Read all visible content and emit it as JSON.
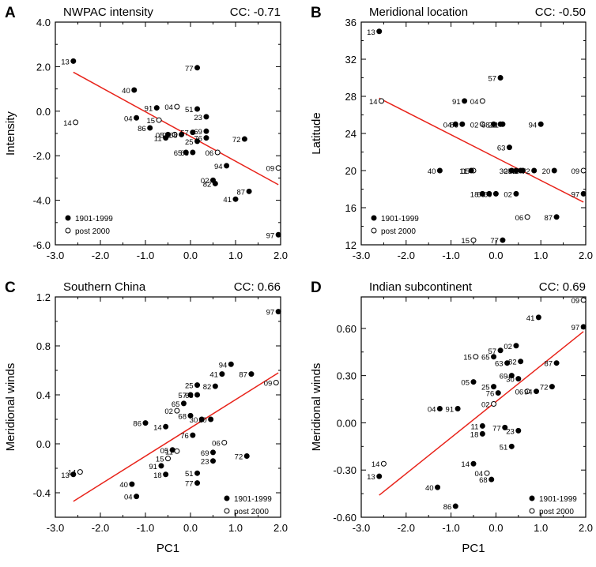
{
  "figure": {
    "xlabel": "PC1",
    "legend": {
      "filled": "1901-1999",
      "open": "post 2000"
    }
  },
  "chart_data": [
    {
      "type": "scatter",
      "panel_label": "A",
      "title": "NWPAC intensity",
      "cc_label": "CC: -0.71",
      "xlabel": "",
      "ylabel": "Intensity",
      "xlim": [
        -3.0,
        2.0
      ],
      "ylim": [
        -6.0,
        4.0
      ],
      "xticks": [
        "-3.0",
        "-2.0",
        "-1.0",
        "0.0",
        "1.0",
        "2.0"
      ],
      "yticks": [
        "-6.0",
        "-4.0",
        "-2.0",
        "0.0",
        "2.0",
        "4.0"
      ],
      "ytick_values": [
        -6,
        -4,
        -2,
        0,
        2,
        4
      ],
      "fit_line": [
        [
          -2.6,
          1.75
        ],
        [
          1.95,
          -3.3
        ]
      ],
      "legend_position": "bottom-left",
      "points": [
        {
          "label": "13",
          "x": -2.6,
          "y": 2.25,
          "open": false
        },
        {
          "label": "14",
          "x": -2.55,
          "y": -0.5,
          "open": true
        },
        {
          "label": "40",
          "x": -1.25,
          "y": 0.95,
          "open": false
        },
        {
          "label": "04",
          "x": -1.2,
          "y": -0.3,
          "open": false
        },
        {
          "label": "86",
          "x": -0.9,
          "y": -0.75,
          "open": false
        },
        {
          "label": "91",
          "x": -0.75,
          "y": 0.15,
          "open": false
        },
        {
          "label": "15",
          "x": -0.7,
          "y": -0.4,
          "open": true
        },
        {
          "label": "04",
          "x": -0.3,
          "y": 0.2,
          "open": true
        },
        {
          "label": "11",
          "x": -0.55,
          "y": -1.2,
          "open": false
        },
        {
          "label": "05",
          "x": -0.5,
          "y": -1.05,
          "open": false
        },
        {
          "label": "02",
          "x": -0.35,
          "y": -1.05,
          "open": true
        },
        {
          "label": "68",
          "x": -0.2,
          "y": -1.05,
          "open": false
        },
        {
          "label": "77",
          "x": 0.15,
          "y": 1.95,
          "open": false
        },
        {
          "label": "51",
          "x": 0.15,
          "y": 0.1,
          "open": false
        },
        {
          "label": "23",
          "x": 0.35,
          "y": -0.25,
          "open": false
        },
        {
          "label": "57",
          "x": 0.05,
          "y": -0.95,
          "open": false
        },
        {
          "label": "69",
          "x": 0.35,
          "y": -0.9,
          "open": false
        },
        {
          "label": "25",
          "x": 0.15,
          "y": -1.35,
          "open": false
        },
        {
          "label": "76",
          "x": 0.35,
          "y": -1.2,
          "open": false
        },
        {
          "label": "65",
          "x": -0.1,
          "y": -1.85,
          "open": false
        },
        {
          "label": "63",
          "x": 0.05,
          "y": -1.85,
          "open": false
        },
        {
          "label": "72",
          "x": 1.2,
          "y": -1.25,
          "open": false
        },
        {
          "label": "06",
          "x": 0.6,
          "y": -1.85,
          "open": true
        },
        {
          "label": "94",
          "x": 0.8,
          "y": -2.45,
          "open": false
        },
        {
          "label": "02",
          "x": 0.5,
          "y": -3.1,
          "open": false
        },
        {
          "label": "82",
          "x": 0.55,
          "y": -3.25,
          "open": false
        },
        {
          "label": "87",
          "x": 1.3,
          "y": -3.6,
          "open": false
        },
        {
          "label": "41",
          "x": 1.0,
          "y": -3.95,
          "open": false
        },
        {
          "label": "09",
          "x": 1.95,
          "y": -2.55,
          "open": true
        },
        {
          "label": "97",
          "x": 1.95,
          "y": -5.55,
          "open": false
        }
      ]
    },
    {
      "type": "scatter",
      "panel_label": "B",
      "title": "Meridional location",
      "cc_label": "CC: -0.50",
      "xlabel": "",
      "ylabel": "Latitude",
      "xlim": [
        -3.0,
        2.0
      ],
      "ylim": [
        12,
        36
      ],
      "xticks": [
        "-3.0",
        "-2.0",
        "-1.0",
        "0.0",
        "1.0",
        "2.0"
      ],
      "yticks": [
        "12",
        "16",
        "20",
        "24",
        "28",
        "32",
        "36"
      ],
      "ytick_values": [
        12,
        16,
        20,
        24,
        28,
        32,
        36
      ],
      "fit_line": [
        [
          -2.6,
          27.8
        ],
        [
          1.95,
          16.6
        ]
      ],
      "legend_position": "bottom-left",
      "points": [
        {
          "label": "13",
          "x": -2.6,
          "y": 35.0,
          "open": false
        },
        {
          "label": "14",
          "x": -2.55,
          "y": 27.5,
          "open": true
        },
        {
          "label": "57",
          "x": 0.1,
          "y": 30.0,
          "open": false
        },
        {
          "label": "91",
          "x": -0.7,
          "y": 27.5,
          "open": false
        },
        {
          "label": "04",
          "x": -0.3,
          "y": 27.5,
          "open": true
        },
        {
          "label": "04",
          "x": -0.9,
          "y": 25.0,
          "open": false
        },
        {
          "label": "86",
          "x": -0.75,
          "y": 25.0,
          "open": false
        },
        {
          "label": "02",
          "x": -0.3,
          "y": 25.0,
          "open": true
        },
        {
          "label": "68",
          "x": -0.05,
          "y": 25.0,
          "open": false
        },
        {
          "label": "23",
          "x": 0.1,
          "y": 25.0,
          "open": false
        },
        {
          "label": "51",
          "x": 0.15,
          "y": 25.0,
          "open": false
        },
        {
          "label": "94",
          "x": 1.0,
          "y": 25.0,
          "open": false
        },
        {
          "label": "63",
          "x": 0.3,
          "y": 22.5,
          "open": false
        },
        {
          "label": "40",
          "x": -1.25,
          "y": 20.0,
          "open": false
        },
        {
          "label": "05",
          "x": -0.5,
          "y": 20.0,
          "open": true
        },
        {
          "label": "11",
          "x": -0.55,
          "y": 20.0,
          "open": false
        },
        {
          "label": "30",
          "x": 0.35,
          "y": 20.0,
          "open": false
        },
        {
          "label": "25",
          "x": 0.45,
          "y": 20.0,
          "open": false
        },
        {
          "label": "82",
          "x": 0.55,
          "y": 20.0,
          "open": false
        },
        {
          "label": "41",
          "x": 0.6,
          "y": 20.0,
          "open": false
        },
        {
          "label": "72",
          "x": 0.85,
          "y": 20.0,
          "open": false
        },
        {
          "label": "20",
          "x": 1.3,
          "y": 20.0,
          "open": false
        },
        {
          "label": "09",
          "x": 1.95,
          "y": 20.0,
          "open": true
        },
        {
          "label": "18",
          "x": -0.3,
          "y": 17.5,
          "open": false
        },
        {
          "label": "65",
          "x": -0.15,
          "y": 17.5,
          "open": false
        },
        {
          "label": "69",
          "x": 0.0,
          "y": 17.5,
          "open": false
        },
        {
          "label": "02",
          "x": 0.45,
          "y": 17.5,
          "open": false
        },
        {
          "label": "97",
          "x": 1.95,
          "y": 17.5,
          "open": false
        },
        {
          "label": "06",
          "x": 0.7,
          "y": 15.0,
          "open": true
        },
        {
          "label": "87",
          "x": 1.35,
          "y": 15.0,
          "open": false
        },
        {
          "label": "15",
          "x": -0.5,
          "y": 12.5,
          "open": true
        },
        {
          "label": "77",
          "x": 0.15,
          "y": 12.5,
          "open": false
        }
      ]
    },
    {
      "type": "scatter",
      "panel_label": "C",
      "title": "Southern China",
      "cc_label": "CC: 0.66",
      "xlabel": "PC1",
      "ylabel": "Meridional winds",
      "xlim": [
        -3.0,
        2.0
      ],
      "ylim": [
        -0.6,
        1.2
      ],
      "xticks": [
        "-3.0",
        "-2.0",
        "-1.0",
        "0.0",
        "1.0",
        "2.0"
      ],
      "yticks": [
        "-0.4",
        "0.0",
        "0.4",
        "0.8",
        "1.2"
      ],
      "ytick_values": [
        -0.4,
        0.0,
        0.4,
        0.8,
        1.2
      ],
      "fit_line": [
        [
          -2.6,
          -0.47
        ],
        [
          1.95,
          0.58
        ]
      ],
      "legend_position": "bottom-right",
      "points": [
        {
          "label": "97",
          "x": 1.95,
          "y": 1.08,
          "open": false
        },
        {
          "label": "94",
          "x": 0.9,
          "y": 0.65,
          "open": false
        },
        {
          "label": "41",
          "x": 0.7,
          "y": 0.57,
          "open": false
        },
        {
          "label": "87",
          "x": 1.35,
          "y": 0.57,
          "open": false
        },
        {
          "label": "09",
          "x": 1.9,
          "y": 0.5,
          "open": true
        },
        {
          "label": "25",
          "x": 0.15,
          "y": 0.48,
          "open": false
        },
        {
          "label": "82",
          "x": 0.55,
          "y": 0.47,
          "open": false
        },
        {
          "label": "57",
          "x": 0.0,
          "y": 0.4,
          "open": false
        },
        {
          "label": "63",
          "x": 0.15,
          "y": 0.4,
          "open": false
        },
        {
          "label": "65",
          "x": -0.15,
          "y": 0.33,
          "open": false
        },
        {
          "label": "02",
          "x": -0.3,
          "y": 0.27,
          "open": true
        },
        {
          "label": "68",
          "x": 0.0,
          "y": 0.23,
          "open": false
        },
        {
          "label": "30",
          "x": 0.25,
          "y": 0.2,
          "open": false
        },
        {
          "label": "20",
          "x": 0.45,
          "y": 0.2,
          "open": false
        },
        {
          "label": "86",
          "x": -1.0,
          "y": 0.17,
          "open": false
        },
        {
          "label": "14",
          "x": -0.55,
          "y": 0.14,
          "open": false
        },
        {
          "label": "76",
          "x": 0.05,
          "y": 0.07,
          "open": false
        },
        {
          "label": "06",
          "x": 0.75,
          "y": 0.01,
          "open": true
        },
        {
          "label": "05",
          "x": -0.4,
          "y": -0.05,
          "open": false
        },
        {
          "label": "11",
          "x": -0.3,
          "y": -0.06,
          "open": true
        },
        {
          "label": "69",
          "x": 0.5,
          "y": -0.07,
          "open": false
        },
        {
          "label": "15",
          "x": -0.5,
          "y": -0.12,
          "open": true
        },
        {
          "label": "72",
          "x": 1.25,
          "y": -0.1,
          "open": false
        },
        {
          "label": "91",
          "x": -0.65,
          "y": -0.18,
          "open": false
        },
        {
          "label": "23",
          "x": 0.5,
          "y": -0.14,
          "open": false
        },
        {
          "label": "18",
          "x": -0.55,
          "y": -0.25,
          "open": false
        },
        {
          "label": "51",
          "x": 0.15,
          "y": -0.24,
          "open": false
        },
        {
          "label": "77",
          "x": 0.15,
          "y": -0.32,
          "open": false
        },
        {
          "label": "13",
          "x": -2.6,
          "y": -0.25,
          "open": false
        },
        {
          "label": "14",
          "x": -2.45,
          "y": -0.23,
          "open": true
        },
        {
          "label": "40",
          "x": -1.3,
          "y": -0.33,
          "open": false
        },
        {
          "label": "04",
          "x": -1.2,
          "y": -0.43,
          "open": false
        }
      ]
    },
    {
      "type": "scatter",
      "panel_label": "D",
      "title": "Indian subcontinent",
      "cc_label": "CC: 0.69",
      "xlabel": "PC1",
      "ylabel": "Meridional winds",
      "xlim": [
        -3.0,
        2.0
      ],
      "ylim": [
        -0.6,
        0.8
      ],
      "xticks": [
        "-3.0",
        "-2.0",
        "-1.0",
        "0.0",
        "1.0",
        "2.0"
      ],
      "yticks": [
        "-0.60",
        "-0.30",
        "0.00",
        "0.30",
        "0.60"
      ],
      "ytick_values": [
        -0.6,
        -0.3,
        0.0,
        0.3,
        0.6
      ],
      "fit_line": [
        [
          -2.6,
          -0.46
        ],
        [
          1.95,
          0.58
        ]
      ],
      "legend_position": "bottom-right",
      "points": [
        {
          "label": "09",
          "x": 1.95,
          "y": 0.78,
          "open": true
        },
        {
          "label": "41",
          "x": 0.95,
          "y": 0.67,
          "open": false
        },
        {
          "label": "97",
          "x": 1.95,
          "y": 0.61,
          "open": false
        },
        {
          "label": "02",
          "x": 0.45,
          "y": 0.49,
          "open": false
        },
        {
          "label": "57",
          "x": 0.1,
          "y": 0.46,
          "open": false
        },
        {
          "label": "15",
          "x": -0.45,
          "y": 0.42,
          "open": true
        },
        {
          "label": "65",
          "x": -0.05,
          "y": 0.42,
          "open": false
        },
        {
          "label": "63",
          "x": 0.25,
          "y": 0.38,
          "open": false
        },
        {
          "label": "82",
          "x": 0.55,
          "y": 0.39,
          "open": false
        },
        {
          "label": "87",
          "x": 1.35,
          "y": 0.38,
          "open": false
        },
        {
          "label": "69",
          "x": 0.35,
          "y": 0.3,
          "open": false
        },
        {
          "label": "30",
          "x": 0.5,
          "y": 0.28,
          "open": false
        },
        {
          "label": "05",
          "x": -0.5,
          "y": 0.26,
          "open": false
        },
        {
          "label": "25",
          "x": -0.05,
          "y": 0.23,
          "open": false
        },
        {
          "label": "76",
          "x": 0.05,
          "y": 0.19,
          "open": false
        },
        {
          "label": "06",
          "x": 0.7,
          "y": 0.2,
          "open": true
        },
        {
          "label": "94",
          "x": 0.9,
          "y": 0.2,
          "open": false
        },
        {
          "label": "72",
          "x": 1.25,
          "y": 0.23,
          "open": false
        },
        {
          "label": "02",
          "x": -0.05,
          "y": 0.12,
          "open": true
        },
        {
          "label": "04",
          "x": -1.25,
          "y": 0.09,
          "open": false
        },
        {
          "label": "91",
          "x": -0.85,
          "y": 0.09,
          "open": false
        },
        {
          "label": "11",
          "x": -0.3,
          "y": -0.02,
          "open": false
        },
        {
          "label": "77",
          "x": 0.2,
          "y": -0.03,
          "open": false
        },
        {
          "label": "23",
          "x": 0.5,
          "y": -0.05,
          "open": false
        },
        {
          "label": "18",
          "x": -0.3,
          "y": -0.07,
          "open": false
        },
        {
          "label": "51",
          "x": 0.35,
          "y": -0.15,
          "open": false
        },
        {
          "label": "14",
          "x": -0.5,
          "y": -0.26,
          "open": false
        },
        {
          "label": "04",
          "x": -0.2,
          "y": -0.32,
          "open": true
        },
        {
          "label": "68",
          "x": -0.1,
          "y": -0.36,
          "open": false
        },
        {
          "label": "14",
          "x": -2.5,
          "y": -0.26,
          "open": true
        },
        {
          "label": "13",
          "x": -2.6,
          "y": -0.34,
          "open": false
        },
        {
          "label": "40",
          "x": -1.3,
          "y": -0.41,
          "open": false
        },
        {
          "label": "86",
          "x": -0.9,
          "y": -0.53,
          "open": false
        }
      ]
    }
  ],
  "colors": {
    "fit_line": "#e8231a",
    "marker": "#000000",
    "background": "#ffffff"
  }
}
